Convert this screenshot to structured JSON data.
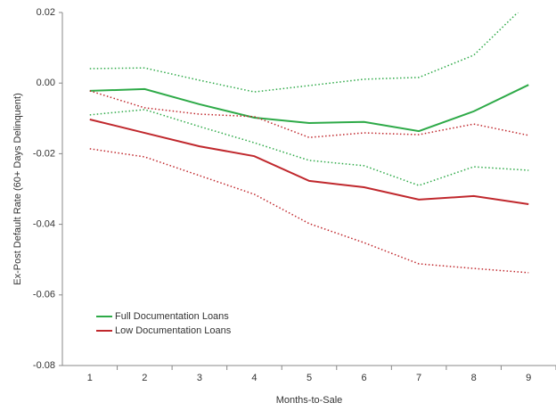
{
  "chart_data": {
    "type": "line",
    "x_label": "Months-to-Sale",
    "y_label": "Ex-Post Default Rate (60+ Days Delinquent)",
    "categories": [
      "1",
      "2",
      "3",
      "4",
      "5",
      "6",
      "7",
      "8",
      "9"
    ],
    "series": [
      {
        "name": "Full Documentation Loans",
        "color": "#2eaa48",
        "values": [
          -0.0022,
          -0.0017,
          -0.006,
          -0.0098,
          -0.0113,
          -0.011,
          -0.0136,
          -0.008,
          -0.0005
        ],
        "upper": [
          0.0041,
          0.0043,
          0.0008,
          -0.0025,
          -0.0007,
          0.0011,
          0.0016,
          0.0079,
          0.023
        ],
        "lower": [
          -0.009,
          -0.0075,
          -0.0123,
          -0.0169,
          -0.0219,
          -0.0234,
          -0.029,
          -0.0237,
          -0.0247
        ]
      },
      {
        "name": "Low Documentation Loans",
        "color": "#c0282d",
        "values": [
          -0.0103,
          -0.0141,
          -0.0179,
          -0.0207,
          -0.0277,
          -0.0295,
          -0.033,
          -0.032,
          -0.0343
        ],
        "upper": [
          -0.0022,
          -0.007,
          -0.0088,
          -0.0095,
          -0.0154,
          -0.0141,
          -0.0146,
          -0.0116,
          -0.0148
        ],
        "lower": [
          -0.0186,
          -0.0209,
          -0.0262,
          -0.0315,
          -0.0398,
          -0.0452,
          -0.0512,
          -0.0525,
          -0.0537
        ]
      }
    ],
    "ylim": [
      -0.08,
      0.02
    ],
    "yticks": [
      0.02,
      {
        "value": 0,
        "label": "0.00"
      },
      -0.02,
      -0.04,
      -0.06,
      -0.08
    ],
    "legend": "lower-left"
  }
}
